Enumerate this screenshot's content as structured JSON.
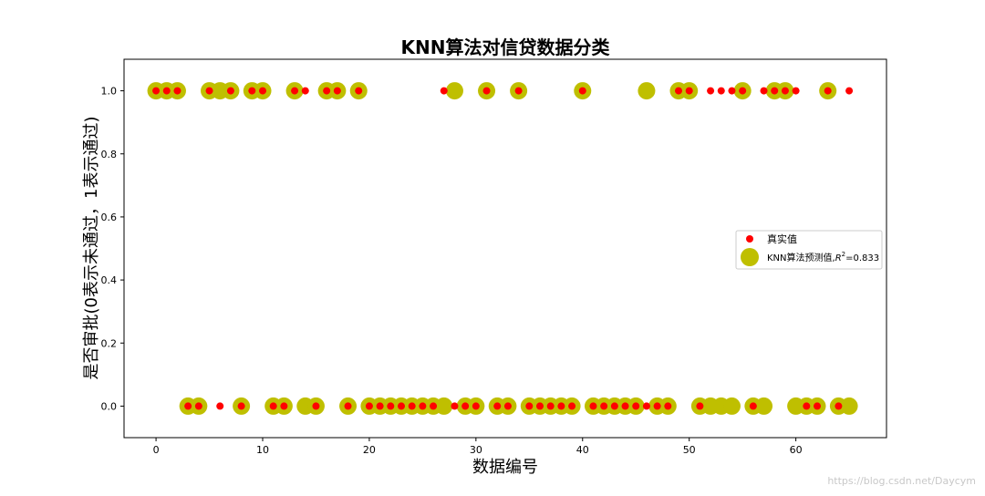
{
  "chart_data": {
    "type": "scatter",
    "title": "KNN算法对信贷数据分类",
    "xlabel": "数据编号",
    "ylabel": "是否审批(0表示未通过，1表示通过)",
    "xlim": [
      -3,
      68.5
    ],
    "ylim": [
      -0.1,
      1.1
    ],
    "xticks": [
      0,
      10,
      20,
      30,
      40,
      50,
      60
    ],
    "yticks": [
      0.0,
      0.2,
      0.4,
      0.6,
      0.8,
      1.0
    ],
    "xtick_labels": [
      "0",
      "10",
      "20",
      "30",
      "40",
      "50",
      "60"
    ],
    "ytick_labels": [
      "0.0",
      "0.2",
      "0.4",
      "0.6",
      "0.8",
      "1.0"
    ],
    "legend_position": "center-right",
    "series": [
      {
        "name": "真实值",
        "color": "#ff0000",
        "marker": "small-dot",
        "x": [
          0,
          1,
          2,
          3,
          4,
          5,
          6,
          7,
          8,
          9,
          10,
          11,
          12,
          13,
          14,
          15,
          16,
          17,
          18,
          19,
          20,
          21,
          22,
          23,
          24,
          25,
          26,
          27,
          28,
          29,
          30,
          31,
          32,
          33,
          34,
          35,
          36,
          37,
          38,
          39,
          40,
          41,
          42,
          43,
          44,
          45,
          46,
          47,
          48,
          49,
          50,
          51,
          52,
          53,
          54,
          55,
          56,
          57,
          58,
          59,
          60,
          61,
          62,
          63,
          64,
          65
        ],
        "y": [
          1,
          1,
          1,
          0,
          0,
          1,
          0,
          1,
          0,
          1,
          1,
          0,
          0,
          1,
          1,
          0,
          1,
          1,
          0,
          1,
          0,
          0,
          0,
          0,
          0,
          0,
          0,
          1,
          0,
          0,
          0,
          1,
          0,
          0,
          1,
          0,
          0,
          0,
          0,
          0,
          1,
          0,
          0,
          0,
          0,
          0,
          0,
          0,
          0,
          1,
          1,
          0,
          1,
          1,
          1,
          1,
          0,
          1,
          1,
          1,
          1,
          0,
          0,
          1,
          0,
          1
        ]
      },
      {
        "name": "KNN算法预测值,",
        "color": "#bfbf00",
        "marker": "large-dot",
        "x": [
          0,
          1,
          2,
          3,
          4,
          5,
          6,
          7,
          8,
          9,
          10,
          11,
          12,
          13,
          14,
          15,
          16,
          17,
          18,
          19,
          20,
          21,
          22,
          23,
          24,
          25,
          26,
          27,
          28,
          29,
          30,
          31,
          32,
          33,
          34,
          35,
          36,
          37,
          38,
          39,
          40,
          41,
          42,
          43,
          44,
          45,
          46,
          47,
          48,
          49,
          50,
          51,
          52,
          53,
          54,
          55,
          56,
          57,
          58,
          59,
          60,
          61,
          62,
          63,
          64,
          65
        ],
        "y": [
          1,
          1,
          1,
          0,
          0,
          1,
          1,
          1,
          0,
          1,
          1,
          0,
          0,
          1,
          0,
          0,
          1,
          1,
          0,
          1,
          0,
          0,
          0,
          0,
          0,
          0,
          0,
          0,
          1,
          0,
          0,
          1,
          0,
          0,
          1,
          0,
          0,
          0,
          0,
          0,
          1,
          0,
          0,
          0,
          0,
          0,
          1,
          0,
          0,
          1,
          1,
          0,
          0,
          0,
          0,
          1,
          0,
          0,
          1,
          1,
          0,
          0,
          0,
          1,
          0,
          0
        ]
      }
    ],
    "legend_r2_symbol": "R",
    "legend_r2_sup": "2",
    "legend_r2_value": "=0.833"
  },
  "watermark": "https://blog.csdn.net/Daycym"
}
